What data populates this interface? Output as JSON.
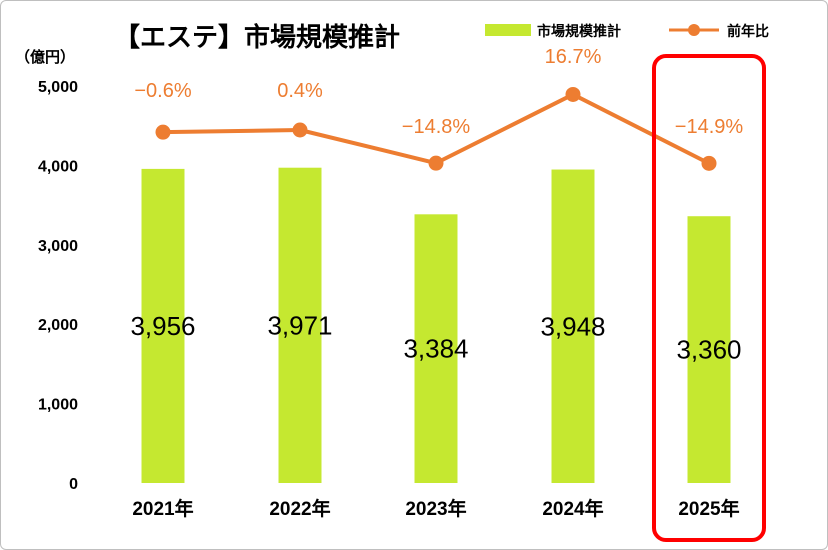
{
  "chart_data": {
    "type": "bar",
    "title": "【エステ】市場規模推計",
    "ylabel": "（億円）",
    "ylim": [
      0,
      5000
    ],
    "yticks": [
      "0",
      "1,000",
      "2,000",
      "3,000",
      "4,000",
      "5,000"
    ],
    "categories": [
      "2021年",
      "2022年",
      "2023年",
      "2024年",
      "2025年"
    ],
    "series": [
      {
        "name": "市場規模推計",
        "type": "bar",
        "color": "#C5E830",
        "values": [
          3956,
          3971,
          3384,
          3948,
          3360
        ],
        "labels": [
          "3,956",
          "3,971",
          "3,384",
          "3,948",
          "3,360"
        ]
      },
      {
        "name": "前年比",
        "type": "line",
        "color": "#ED7D31",
        "values": [
          -0.6,
          0.4,
          -14.8,
          16.7,
          -14.9
        ],
        "labels": [
          "−0.6%",
          "0.4%",
          "−14.8%",
          "16.7%",
          "−14.9%"
        ]
      }
    ],
    "highlight": {
      "category": "2025年",
      "color": "#FF0000"
    },
    "grid": false,
    "legend": "top-right"
  }
}
